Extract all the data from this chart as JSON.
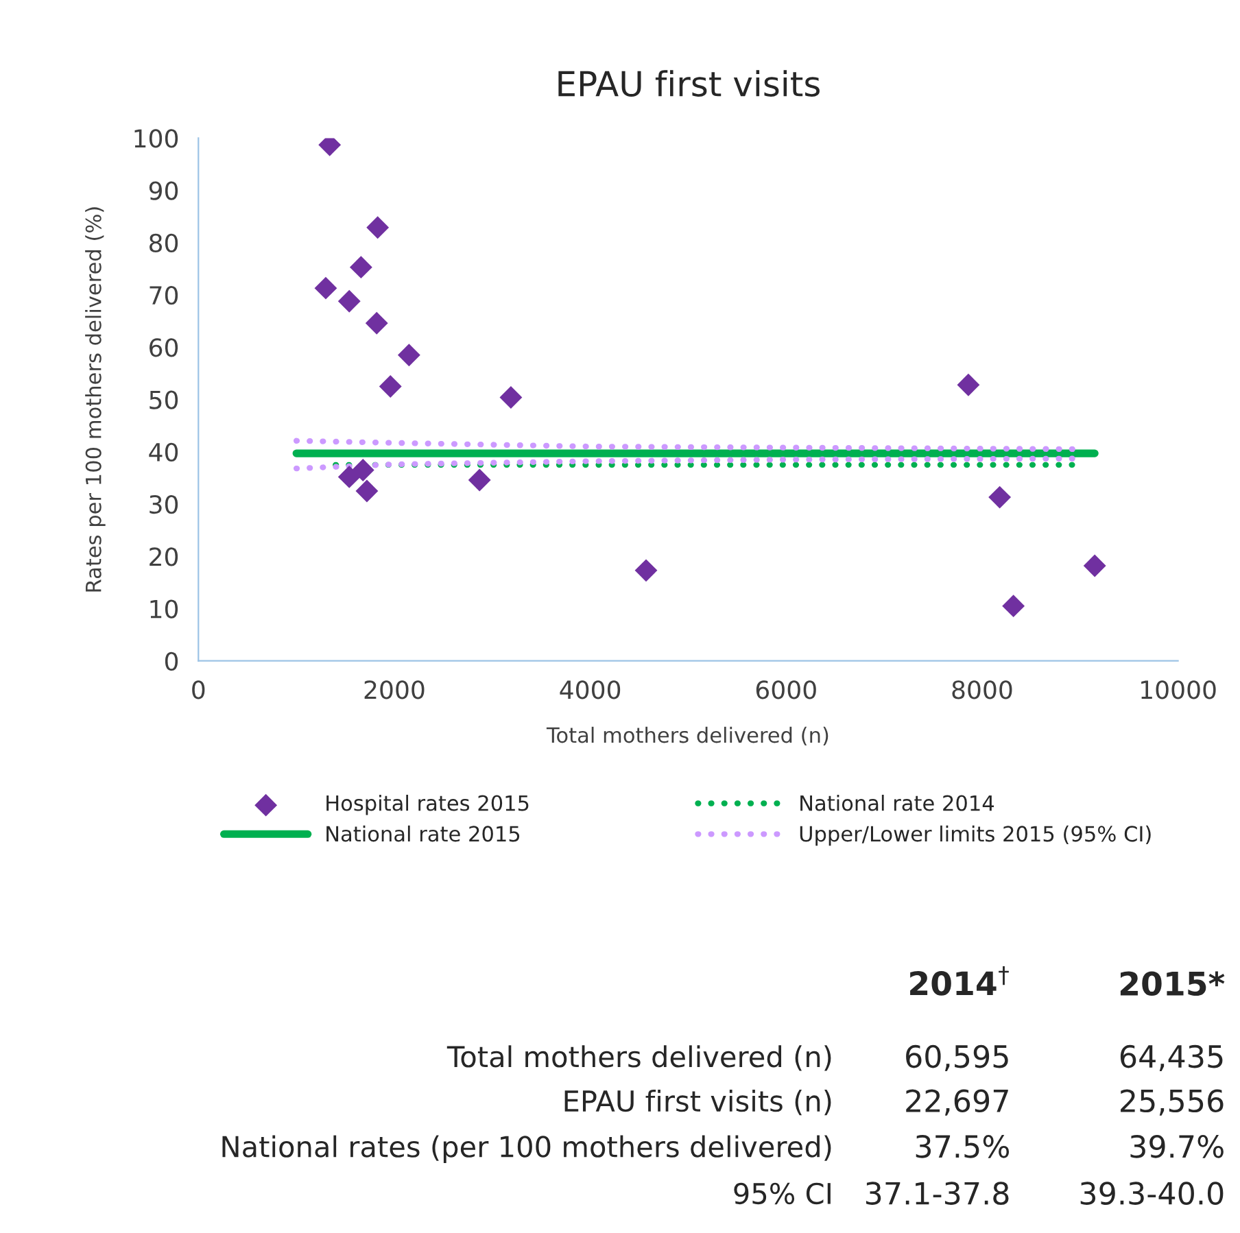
{
  "chart_data": {
    "type": "scatter",
    "title": "EPAU first visits",
    "xlabel": "Total mothers delivered (n)",
    "ylabel": "Rates per 100 mothers delivered (%)",
    "xlim": [
      0,
      10000
    ],
    "xticks": [
      0,
      2000,
      4000,
      6000,
      8000,
      10000
    ],
    "ylim": [
      0,
      100
    ],
    "yticks": [
      0,
      10,
      20,
      30,
      40,
      50,
      60,
      70,
      80,
      90,
      100
    ],
    "grid": false,
    "legend": "bottom",
    "series": [
      {
        "name": "Hospital rates 2015",
        "marker": "diamond",
        "color": "#7030a0",
        "x": [
          1340,
          1300,
          1540,
          1660,
          1830,
          1820,
          2150,
          1960,
          3190,
          1540,
          1680,
          1720,
          2870,
          4570,
          7860,
          8180,
          8320,
          9150
        ],
        "values": [
          98.7,
          71.3,
          68.8,
          75.3,
          82.9,
          64.6,
          58.5,
          52.5,
          50.4,
          35.2,
          36.5,
          32.5,
          34.6,
          17.3,
          52.8,
          31.3,
          10.5,
          18.2
        ]
      },
      {
        "name": "National rate 2015",
        "type": "line",
        "line_style": "solid",
        "color": "#00b050",
        "x": [
          1000,
          9150
        ],
        "values": [
          39.7,
          39.7
        ]
      },
      {
        "name": "National rate 2014",
        "type": "line",
        "line_style": "dotted",
        "color": "#00b050",
        "x": [
          1400,
          9000
        ],
        "values": [
          37.5,
          37.5
        ]
      },
      {
        "name": "Upper/Lower limits 2015 (95% CI)",
        "type": "line",
        "line_style": "dotted",
        "color": "#cc99ff",
        "x": [
          1000,
          2000,
          4000,
          6000,
          9000
        ],
        "values": [
          42.1,
          41.7,
          41.0,
          40.8,
          40.5
        ]
      },
      {
        "type": "line",
        "line_style": "dotted",
        "color": "#cc99ff",
        "x": [
          1000,
          2000,
          4000,
          6000,
          9000
        ],
        "values": [
          36.8,
          37.6,
          38.2,
          38.5,
          38.7
        ]
      }
    ],
    "annotations": [
      "2014$^{†}$",
      "2015*",
      "Total mothers delivered (n)",
      "60,595",
      "64,435",
      "EPAU first visits (n)",
      "22,697",
      "25,556",
      "National rates (per 100 mothers delivered)",
      "37.5%",
      "39.7%",
      "95% CI",
      "37.1-37.8",
      "39.3-40.0"
    ]
  }
}
